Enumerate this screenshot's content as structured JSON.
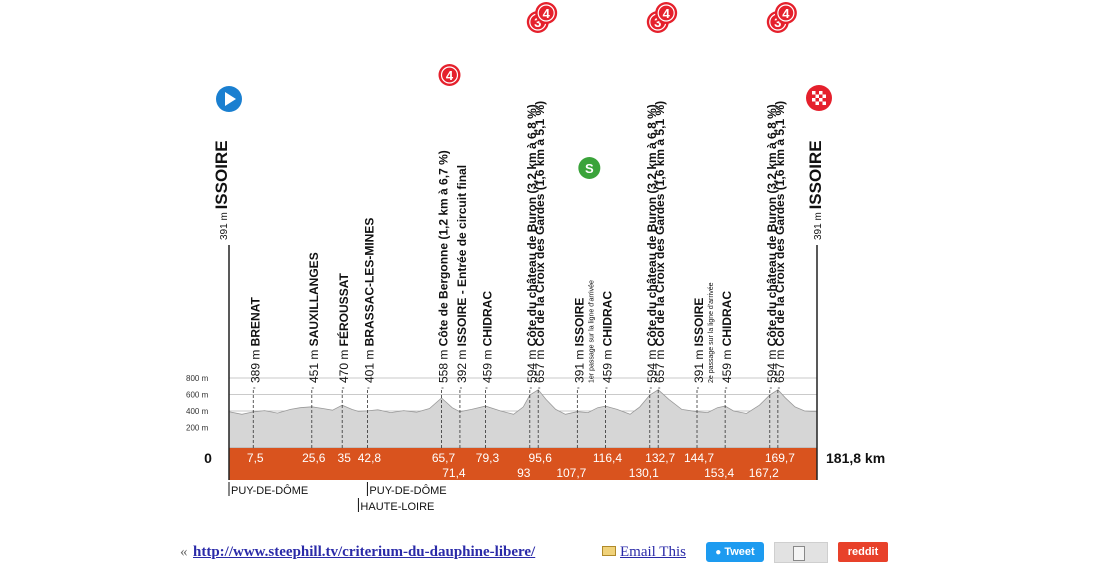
{
  "chart_data": {
    "type": "area",
    "title": "",
    "xlabel": "",
    "ylabel": "",
    "x_unit": "km",
    "y_unit": "m",
    "xlim": [
      0,
      181.8
    ],
    "ylim": [
      0,
      800
    ],
    "y_ticks": [
      "200 m",
      "400 m",
      "600 m",
      "800 m"
    ],
    "grid": true,
    "start_km_label": "0",
    "finish_km_label": "181,8 km",
    "colors": {
      "profile_fill": "#d6d6d6",
      "profile_edge": "#9a9a9a",
      "base_band": "#d9531e",
      "km_text": "#ffffff",
      "climb_cat": "#e5202c",
      "start_icon": "#1a7fd0",
      "sprint_icon": "#3aa33a"
    },
    "distance_marks": [
      {
        "km": 7.5,
        "label": "7,5",
        "row": "top"
      },
      {
        "km": 25.6,
        "label": "25,6",
        "row": "top"
      },
      {
        "km": 35,
        "label": "35",
        "row": "top"
      },
      {
        "km": 42.8,
        "label": "42,8",
        "row": "top"
      },
      {
        "km": 65.7,
        "label": "65,7",
        "row": "top"
      },
      {
        "km": 71.4,
        "label": "71,4",
        "row": "bottom"
      },
      {
        "km": 79.3,
        "label": "79,3",
        "row": "top"
      },
      {
        "km": 93,
        "label": "93",
        "row": "bottom"
      },
      {
        "km": 95.6,
        "label": "95,6",
        "row": "top"
      },
      {
        "km": 107.7,
        "label": "107,7",
        "row": "bottom"
      },
      {
        "km": 116.4,
        "label": "116,4",
        "row": "top"
      },
      {
        "km": 130.1,
        "label": "130,1",
        "row": "bottom"
      },
      {
        "km": 132.7,
        "label": "132,7",
        "row": "top"
      },
      {
        "km": 144.7,
        "label": "144,7",
        "row": "top"
      },
      {
        "km": 153.4,
        "label": "153,4",
        "row": "bottom"
      },
      {
        "km": 167.2,
        "label": "167,2",
        "row": "bottom"
      },
      {
        "km": 169.7,
        "label": "169,7",
        "row": "top"
      }
    ],
    "profile": {
      "x": [
        0,
        4,
        7.5,
        11,
        15,
        19,
        22,
        25.6,
        29,
        32,
        35,
        38,
        40,
        42.8,
        46,
        50,
        54,
        58,
        62,
        65.7,
        69,
        71.4,
        75,
        79.3,
        84,
        88,
        91,
        93,
        95.6,
        98,
        101,
        104,
        107.7,
        111,
        114,
        116.4,
        120,
        124,
        127,
        130.1,
        132.7,
        136,
        140,
        144.7,
        148,
        151,
        153.4,
        156,
        160,
        164,
        167.2,
        169.7,
        172,
        175,
        178,
        181.8
      ],
      "y": [
        391,
        360,
        389,
        405,
        375,
        420,
        440,
        451,
        430,
        410,
        470,
        420,
        395,
        401,
        415,
        380,
        405,
        385,
        430,
        558,
        440,
        392,
        420,
        459,
        400,
        360,
        450,
        594,
        657,
        540,
        420,
        360,
        391,
        380,
        440,
        459,
        420,
        360,
        450,
        594,
        657,
        540,
        420,
        391,
        380,
        440,
        459,
        400,
        370,
        470,
        594,
        657,
        560,
        450,
        400,
        391
      ]
    },
    "places": [
      {
        "km": 0,
        "name": "ISSOIRE",
        "alt": "391 m",
        "kind": "start"
      },
      {
        "km": 7.5,
        "name": "BRENAT",
        "alt": "389 m",
        "kind": "town"
      },
      {
        "km": 25.6,
        "name": "SAUXILLANGES",
        "alt": "451 m",
        "kind": "town"
      },
      {
        "km": 35,
        "name": "FÉROUSSAT",
        "alt": "470 m",
        "kind": "town"
      },
      {
        "km": 42.8,
        "name": "BRASSAC-LES-MINES",
        "alt": "401 m",
        "kind": "town"
      },
      {
        "km": 65.7,
        "name": "Côte de Bergonne (1,2 km à 6,7 %)",
        "alt": "558 m",
        "kind": "climb",
        "cat": "4"
      },
      {
        "km": 71.4,
        "name": "ISSOIRE - Entrée de circuit final",
        "alt": "392 m",
        "kind": "town"
      },
      {
        "km": 79.3,
        "name": "CHIDRAC",
        "alt": "459 m",
        "kind": "town"
      },
      {
        "km": 93,
        "name": "Côte du château de Buron (3,2 km à 6,8 %)",
        "alt": "594 m",
        "kind": "climb",
        "cat": "3"
      },
      {
        "km": 95.6,
        "name": "Col de la Croix des Gardes (1,6 km à 5,1 %)",
        "alt": "657 m",
        "kind": "climb",
        "cat": "4"
      },
      {
        "km": 107.7,
        "name": "ISSOIRE",
        "alt": "391 m",
        "kind": "sprint",
        "note": "1er passage sur la ligne d'arrivée"
      },
      {
        "km": 116.4,
        "name": "CHIDRAC",
        "alt": "459 m",
        "kind": "town"
      },
      {
        "km": 130.1,
        "name": "Côte du château de Buron (3,2 km à 6,8 %)",
        "alt": "594 m",
        "kind": "climb",
        "cat": "3"
      },
      {
        "km": 132.7,
        "name": "Col de la Croix des Gardes (1,6 km à 5,1 %)",
        "alt": "657 m",
        "kind": "climb",
        "cat": "4"
      },
      {
        "km": 144.7,
        "name": "ISSOIRE",
        "alt": "391 m",
        "kind": "town",
        "note": "2e passage sur la ligne d'arrivée"
      },
      {
        "km": 153.4,
        "name": "CHIDRAC",
        "alt": "459 m",
        "kind": "town"
      },
      {
        "km": 167.2,
        "name": "Côte du château de Buron (3,2 km à 6,8 %)",
        "alt": "594 m",
        "kind": "climb",
        "cat": "3"
      },
      {
        "km": 169.7,
        "name": "Col de la Croix des Gardes (1,6 km à 5,1 %)",
        "alt": "657 m",
        "kind": "climb",
        "cat": "4"
      },
      {
        "km": 181.8,
        "name": "ISSOIRE",
        "alt": "391 m",
        "kind": "finish"
      }
    ],
    "regions": [
      {
        "km": 0,
        "lines": [
          "PUY-DE-DÔME"
        ]
      },
      {
        "km": 42.8,
        "lines": [
          "PUY-DE-DÔME",
          "HAUTE-LOIRE"
        ]
      }
    ],
    "start_icon": "play-icon",
    "finish_icon": "checkered-flag-icon",
    "sprint_icon": "sprint-s-icon"
  },
  "footer": {
    "quote": "«",
    "url": "http://www.steephill.tv/criterium-du-dauphine-libere/",
    "email_icon": "envelope-icon",
    "email": "Email This",
    "tweet": "Tweet",
    "print_icon": "document-icon",
    "reddit": "reddit"
  }
}
